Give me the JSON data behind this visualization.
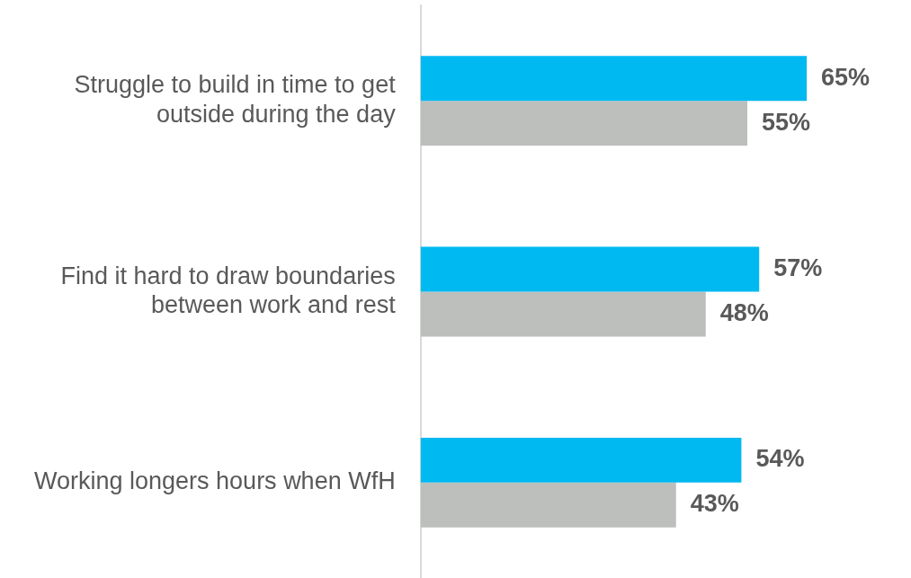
{
  "chart_data": {
    "type": "bar",
    "orientation": "horizontal",
    "categories": [
      "Struggle to build in time to get outside during the day",
      "Find it hard to draw boundaries between work and rest",
      "Working longers hours when WfH"
    ],
    "series": [
      {
        "color": "#00b9f1",
        "values": [
          65,
          57,
          54
        ],
        "value_labels": [
          "65%",
          "57%",
          "54%"
        ]
      },
      {
        "color": "#bdbfbc",
        "values": [
          55,
          48,
          43
        ],
        "value_labels": [
          "55%",
          "48%",
          "43%"
        ]
      }
    ],
    "legend": false
  }
}
